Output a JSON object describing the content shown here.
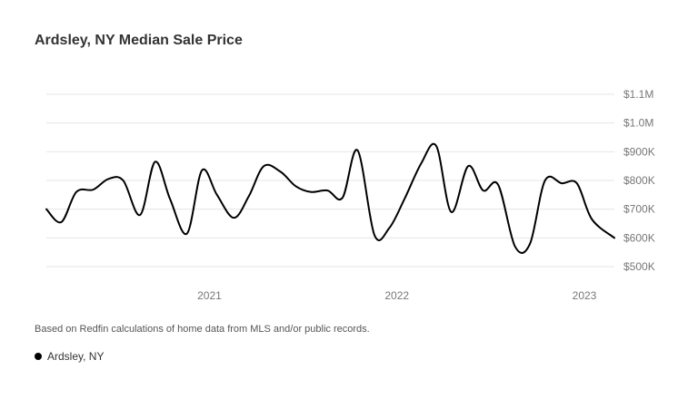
{
  "title": "Ardsley, NY Median Sale Price",
  "footnote": "Based on Redfin calculations of home data from MLS and/or public records.",
  "legend": {
    "label": "Ardsley, NY",
    "color": "#000000"
  },
  "chart_data": {
    "type": "line",
    "title": "Ardsley, NY Median Sale Price",
    "xlabel": "",
    "ylabel": "",
    "ylim": [
      450000,
      1100000
    ],
    "xlim": [
      2020.13,
      2023.16
    ],
    "grid": true,
    "legend_position": "bottom-left",
    "y_ticks": [
      {
        "value": 500000,
        "label": "$500K"
      },
      {
        "value": 600000,
        "label": "$600K"
      },
      {
        "value": 700000,
        "label": "$700K"
      },
      {
        "value": 800000,
        "label": "$800K"
      },
      {
        "value": 900000,
        "label": "$900K"
      },
      {
        "value": 1000000,
        "label": "$1.0M"
      },
      {
        "value": 1100000,
        "label": "$1.1M"
      }
    ],
    "x_ticks": [
      {
        "value": 2021.0,
        "label": "2021"
      },
      {
        "value": 2022.0,
        "label": "2022"
      },
      {
        "value": 2023.0,
        "label": "2023"
      }
    ],
    "series": [
      {
        "name": "Ardsley, NY",
        "color": "#000000",
        "x": [
          2020.13,
          2020.21,
          2020.29,
          2020.38,
          2020.46,
          2020.54,
          2020.63,
          2020.71,
          2020.79,
          2020.88,
          2020.96,
          2021.04,
          2021.13,
          2021.21,
          2021.29,
          2021.38,
          2021.46,
          2021.54,
          2021.63,
          2021.71,
          2021.79,
          2021.88,
          2021.96,
          2022.04,
          2022.13,
          2022.21,
          2022.29,
          2022.38,
          2022.46,
          2022.54,
          2022.63,
          2022.71,
          2022.79,
          2022.88,
          2022.96,
          2023.04,
          2023.16
        ],
        "values": [
          700000,
          655000,
          760000,
          768000,
          805000,
          800000,
          680000,
          865000,
          735000,
          615000,
          835000,
          750000,
          670000,
          745000,
          850000,
          830000,
          780000,
          760000,
          765000,
          740000,
          905000,
          610000,
          635000,
          735000,
          860000,
          920000,
          690000,
          850000,
          765000,
          785000,
          570000,
          580000,
          800000,
          790000,
          790000,
          665000,
          600000
        ]
      }
    ]
  }
}
